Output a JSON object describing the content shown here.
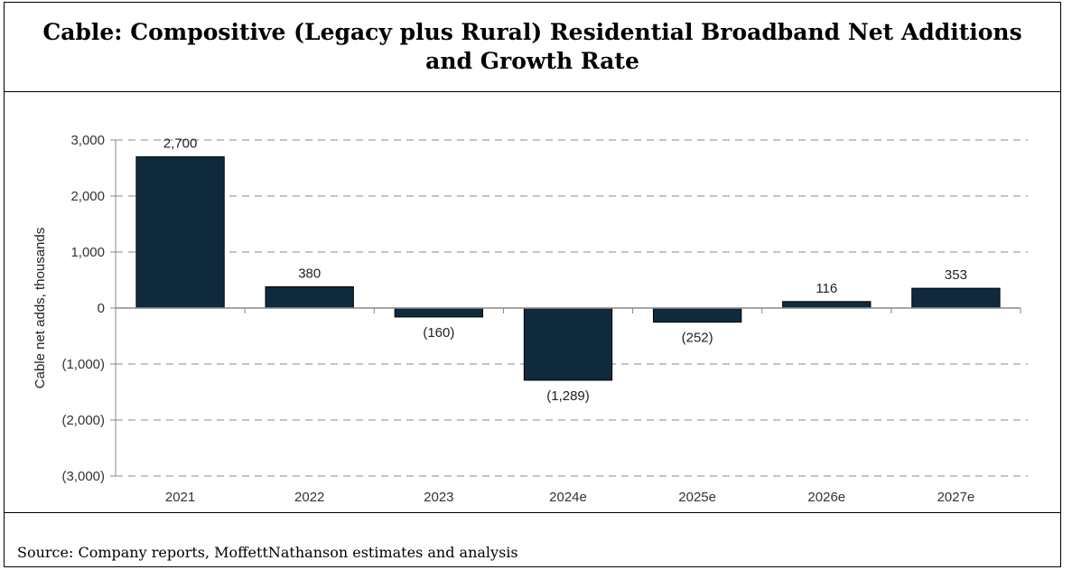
{
  "title": "Cable: Compositive (Legacy plus Rural) Residential Broadband Net Additions and Growth Rate",
  "source": "Source: Company reports, MoffettNathanson estimates and analysis",
  "colors": {
    "bar": "#0f2a3d",
    "grid": "#b0b0b0",
    "axis": "#888888"
  },
  "chart_data": {
    "type": "bar",
    "categories": [
      "2021",
      "2022",
      "2023",
      "2024e",
      "2025e",
      "2026e",
      "2027e"
    ],
    "values": [
      2700,
      380,
      -160,
      -1289,
      -252,
      116,
      353
    ],
    "data_labels": [
      "2,700",
      "380",
      "(160)",
      "(1,289)",
      "(252)",
      "116",
      "353"
    ],
    "ylabel": "Cable net adds, thousands",
    "ylim": [
      -3000,
      3000
    ],
    "yticks": [
      3000,
      2000,
      1000,
      0,
      -1000,
      -2000,
      -3000
    ],
    "ytick_labels": [
      "3,000",
      "2,000",
      "1,000",
      "0",
      "(1,000)",
      "(2,000)",
      "(3,000)"
    ],
    "grid": true,
    "grid_style": "dashed",
    "legend": false
  }
}
